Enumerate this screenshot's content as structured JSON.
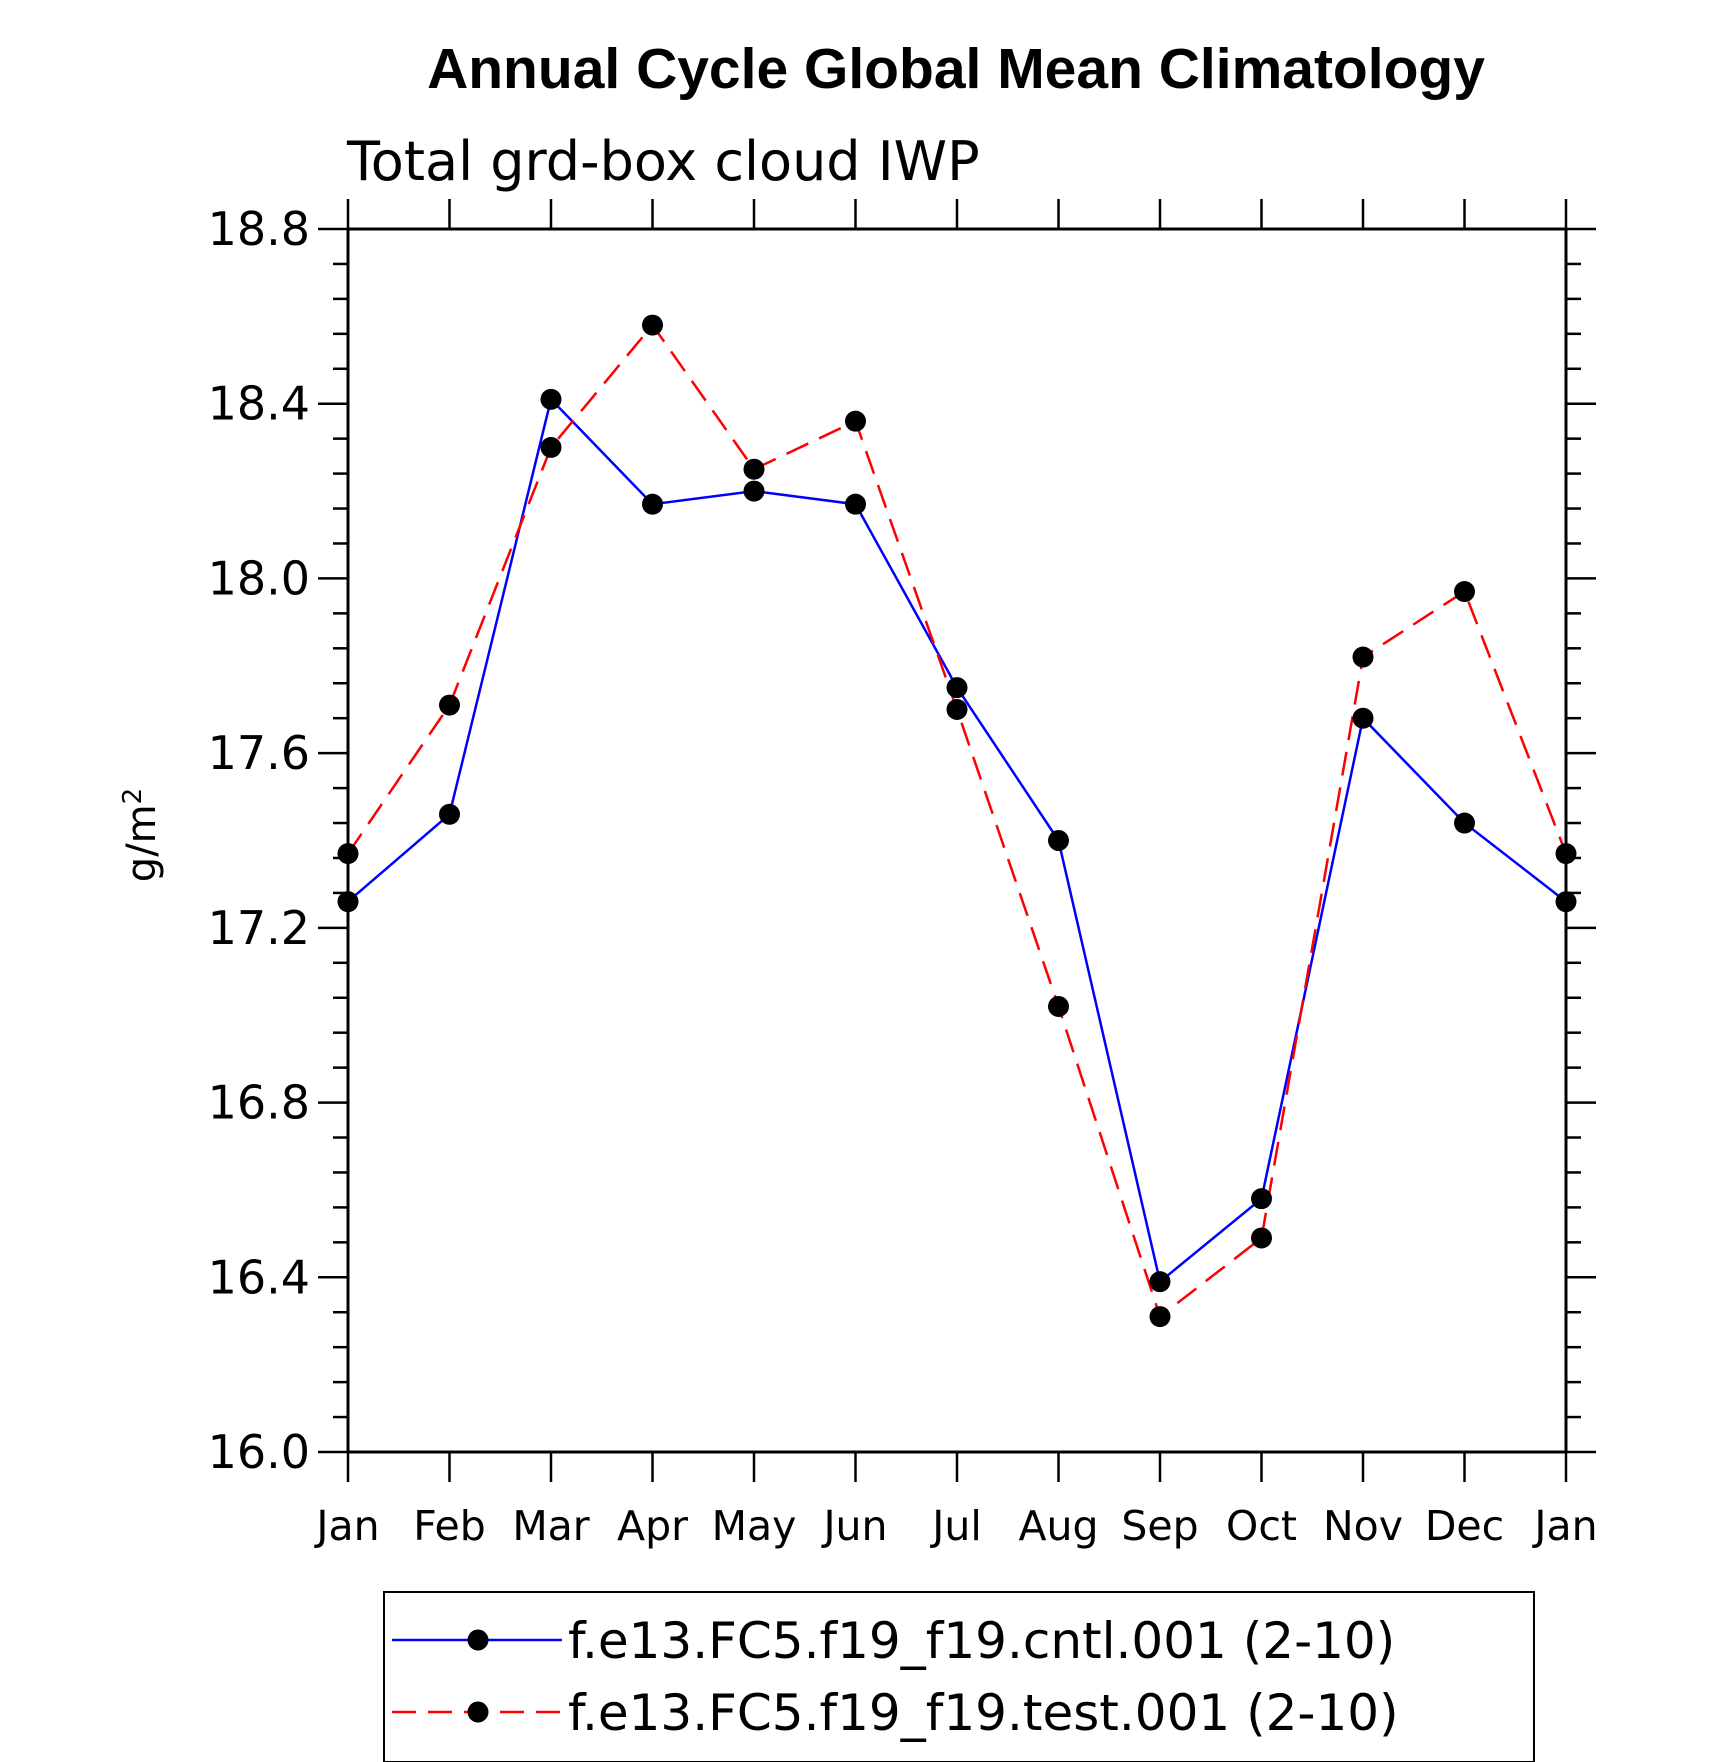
{
  "chart_data": {
    "type": "line",
    "title": "Annual Cycle Global Mean Climatology",
    "subtitle": "Total grd-box cloud IWP",
    "xlabel": "",
    "ylabel": "g/m",
    "ylabel_superscript": "2",
    "categories": [
      "Jan",
      "Feb",
      "Mar",
      "Apr",
      "May",
      "Jun",
      "Jul",
      "Aug",
      "Sep",
      "Oct",
      "Nov",
      "Dec",
      "Jan"
    ],
    "ylim": [
      16.0,
      18.8
    ],
    "yticks": [
      "16.0",
      "16.4",
      "16.8",
      "17.2",
      "17.6",
      "18.0",
      "18.4",
      "18.8"
    ],
    "series": [
      {
        "name": "f.e13.FC5.f19_f19.cntl.001 (2-10)",
        "color": "#0000ff",
        "dash": "solid",
        "marker": "filled-circle",
        "values": [
          17.26,
          17.46,
          18.41,
          18.17,
          18.2,
          18.17,
          17.75,
          17.4,
          16.39,
          16.58,
          17.68,
          17.44,
          17.26
        ]
      },
      {
        "name": "f.e13.FC5.f19_f19.test.001 (2-10)",
        "color": "#ff0000",
        "dash": "dashed",
        "marker": "filled-circle",
        "values": [
          17.37,
          17.71,
          18.3,
          18.58,
          18.25,
          18.36,
          17.7,
          17.02,
          16.31,
          16.49,
          17.82,
          17.97,
          17.37
        ]
      }
    ],
    "legend_position": "bottom-center",
    "grid": false
  }
}
